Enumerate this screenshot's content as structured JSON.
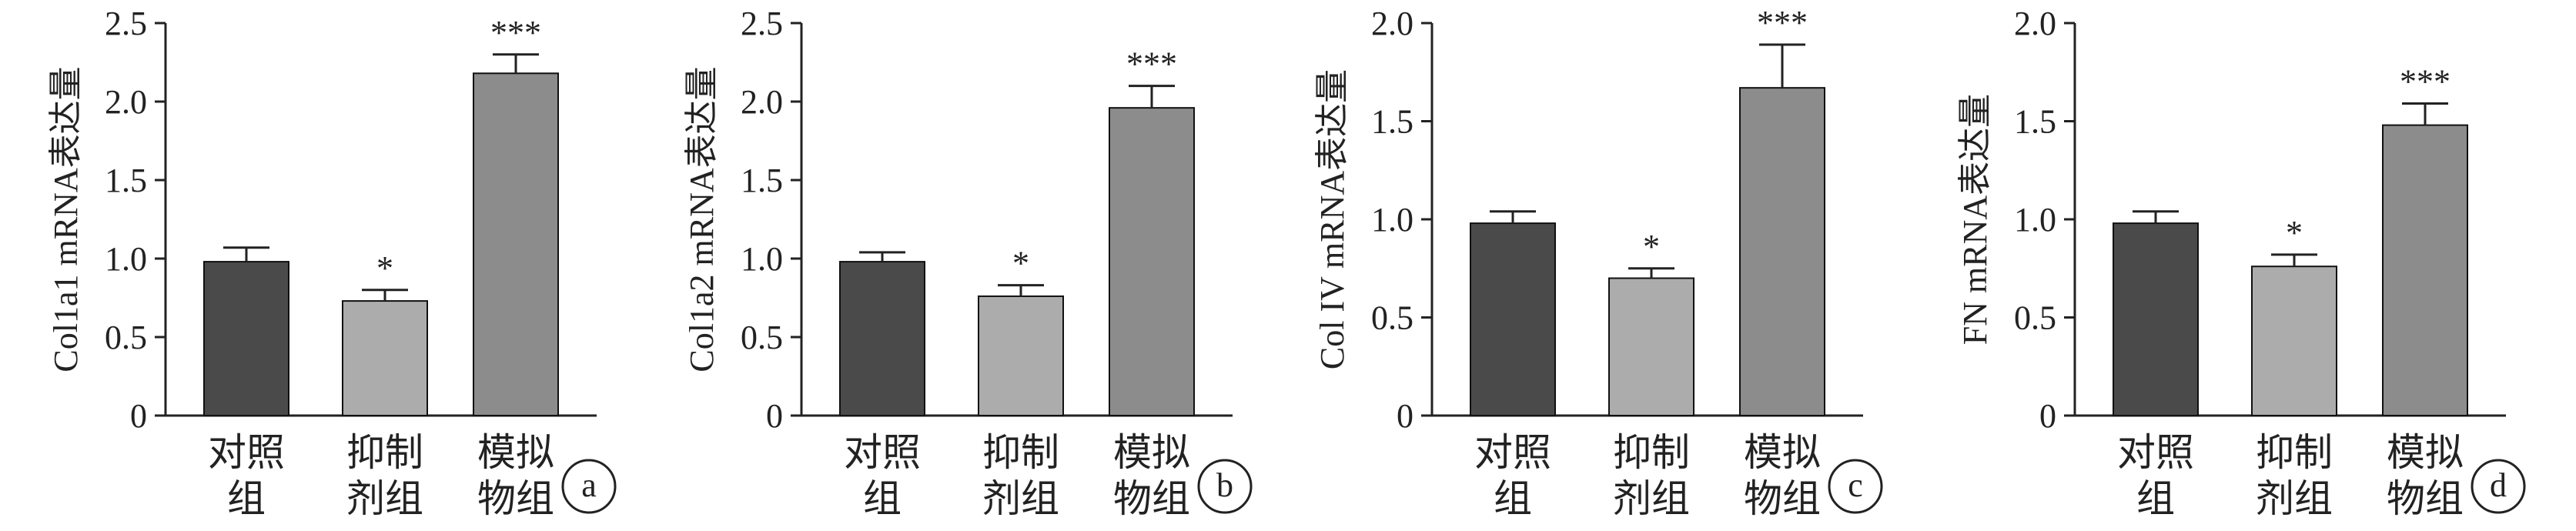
{
  "chart_data": [
    {
      "type": "bar",
      "panel_label": "a",
      "ylabel": "Col1a1 mRNA表达量",
      "ylim": [
        0,
        2.5
      ],
      "yticks": [
        "0",
        "0.5",
        "1.0",
        "1.5",
        "2.0",
        "2.5"
      ],
      "categories": [
        [
          "对照",
          "组"
        ],
        [
          "抑制",
          "剂组"
        ],
        [
          "模拟",
          "物组"
        ]
      ],
      "values": [
        0.98,
        0.73,
        2.18
      ],
      "errors": [
        0.09,
        0.07,
        0.12
      ],
      "significance": [
        "",
        "*",
        "***"
      ],
      "colors": [
        "#4a4a4a",
        "#acacac",
        "#8c8c8c"
      ]
    },
    {
      "type": "bar",
      "panel_label": "b",
      "ylabel": "Col1a2 mRNA表达量",
      "ylim": [
        0,
        2.5
      ],
      "yticks": [
        "0",
        "0.5",
        "1.0",
        "1.5",
        "2.0",
        "2.5"
      ],
      "categories": [
        [
          "对照",
          "组"
        ],
        [
          "抑制",
          "剂组"
        ],
        [
          "模拟",
          "物组"
        ]
      ],
      "values": [
        0.98,
        0.76,
        1.96
      ],
      "errors": [
        0.06,
        0.07,
        0.14
      ],
      "significance": [
        "",
        "*",
        "***"
      ],
      "colors": [
        "#4a4a4a",
        "#acacac",
        "#8c8c8c"
      ]
    },
    {
      "type": "bar",
      "panel_label": "c",
      "ylabel": "Col IV mRNA表达量",
      "ylim": [
        0,
        2.0
      ],
      "yticks": [
        "0",
        "0.5",
        "1.0",
        "1.5",
        "2.0"
      ],
      "categories": [
        [
          "对照",
          "组"
        ],
        [
          "抑制",
          "剂组"
        ],
        [
          "模拟",
          "物组"
        ]
      ],
      "values": [
        0.98,
        0.7,
        1.67
      ],
      "errors": [
        0.06,
        0.05,
        0.22
      ],
      "significance": [
        "",
        "*",
        "***"
      ],
      "colors": [
        "#4a4a4a",
        "#acacac",
        "#8c8c8c"
      ]
    },
    {
      "type": "bar",
      "panel_label": "d",
      "ylabel": "FN mRNA表达量",
      "ylim": [
        0,
        2.0
      ],
      "yticks": [
        "0",
        "0.5",
        "1.0",
        "1.5",
        "2.0"
      ],
      "categories": [
        [
          "对照",
          "组"
        ],
        [
          "抑制",
          "剂组"
        ],
        [
          "模拟",
          "物组"
        ]
      ],
      "values": [
        0.98,
        0.76,
        1.48
      ],
      "errors": [
        0.06,
        0.06,
        0.11
      ],
      "significance": [
        "",
        "*",
        "***"
      ],
      "colors": [
        "#4a4a4a",
        "#acacac",
        "#8c8c8c"
      ]
    }
  ]
}
